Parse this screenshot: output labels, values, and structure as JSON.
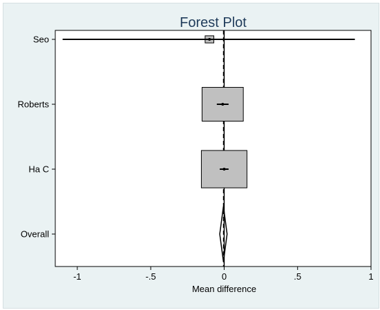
{
  "chart_data": {
    "type": "forest",
    "title": "Forest Plot",
    "xlabel": "Mean difference",
    "xlim": [
      -1.15,
      1.0
    ],
    "xticks": [
      -1,
      -0.5,
      0,
      0.5,
      1
    ],
    "xtick_labels": [
      "-1",
      "-.5",
      "0",
      ".5",
      "1"
    ],
    "studies": [
      {
        "label": "Seo",
        "estimate": -0.1,
        "ci_low": -1.1,
        "ci_high": 0.89,
        "weight_box": 0.02
      },
      {
        "label": "Roberts",
        "estimate": -0.01,
        "ci_low": -0.05,
        "ci_high": 0.03,
        "weight_box": 0.45
      },
      {
        "label": "Ha C",
        "estimate": 0.0,
        "ci_low": -0.03,
        "ci_high": 0.03,
        "weight_box": 0.55
      }
    ],
    "overall": {
      "label": "Overall",
      "estimate": -0.005,
      "ci_low": -0.03,
      "ci_high": 0.02
    },
    "null_line": 0,
    "overall_line": -0.005,
    "colors": {
      "box_fill": "#c0c0c0",
      "background": "#eaf2f3",
      "plot_bg": "#ffffff",
      "title": "#1f3b5a"
    }
  }
}
